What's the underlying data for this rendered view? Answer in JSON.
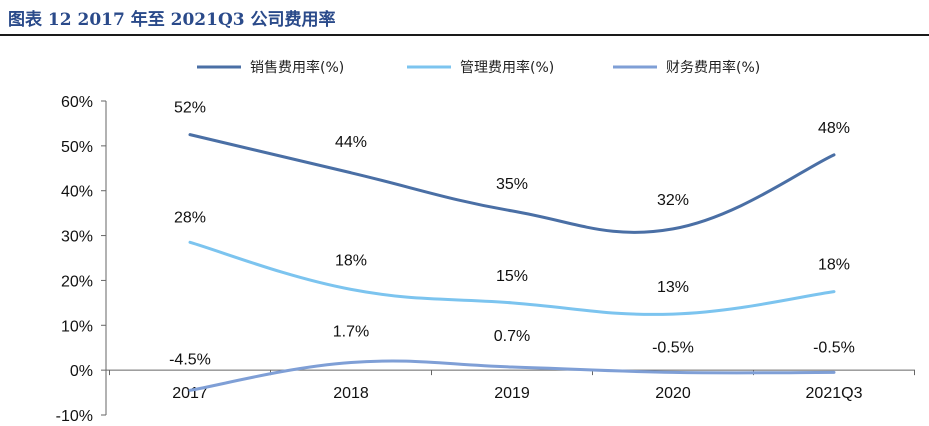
{
  "title": "图表 12 2017 年至 2021Q3 公司费用率",
  "chart_data": {
    "type": "line",
    "title": "图表 12 2017 年至 2021Q3 公司费用率",
    "categories": [
      "2017",
      "2018",
      "2019",
      "2020",
      "2021Q3"
    ],
    "ylim": [
      -10,
      60
    ],
    "yticks": [
      -10,
      0,
      10,
      20,
      30,
      40,
      50,
      60
    ],
    "ytick_labels": [
      "-10%",
      "0%",
      "10%",
      "20%",
      "30%",
      "40%",
      "50%",
      "60%"
    ],
    "xlabel": "",
    "ylabel": "",
    "grid": false,
    "legend_position": "top-center",
    "series": [
      {
        "name": "销售费用率(%)",
        "color": "#4a6fa5",
        "values": [
          52.5,
          44,
          35.5,
          31.5,
          48
        ],
        "labels": [
          "52%",
          "44%",
          "35%",
          "32%",
          "48%"
        ]
      },
      {
        "name": "管理费用率(%)",
        "color": "#7cc4ef",
        "values": [
          28.5,
          18,
          15,
          12.5,
          17.5
        ],
        "labels": [
          "28%",
          "18%",
          "15%",
          "13%",
          "18%"
        ]
      },
      {
        "name": "财务费用率(%)",
        "color": "#7f9fd6",
        "values": [
          -4.5,
          1.7,
          0.7,
          -0.5,
          -0.5
        ],
        "labels": [
          "-4.5%",
          "1.7%",
          "0.7%",
          "-0.5%",
          "-0.5%"
        ]
      }
    ]
  }
}
